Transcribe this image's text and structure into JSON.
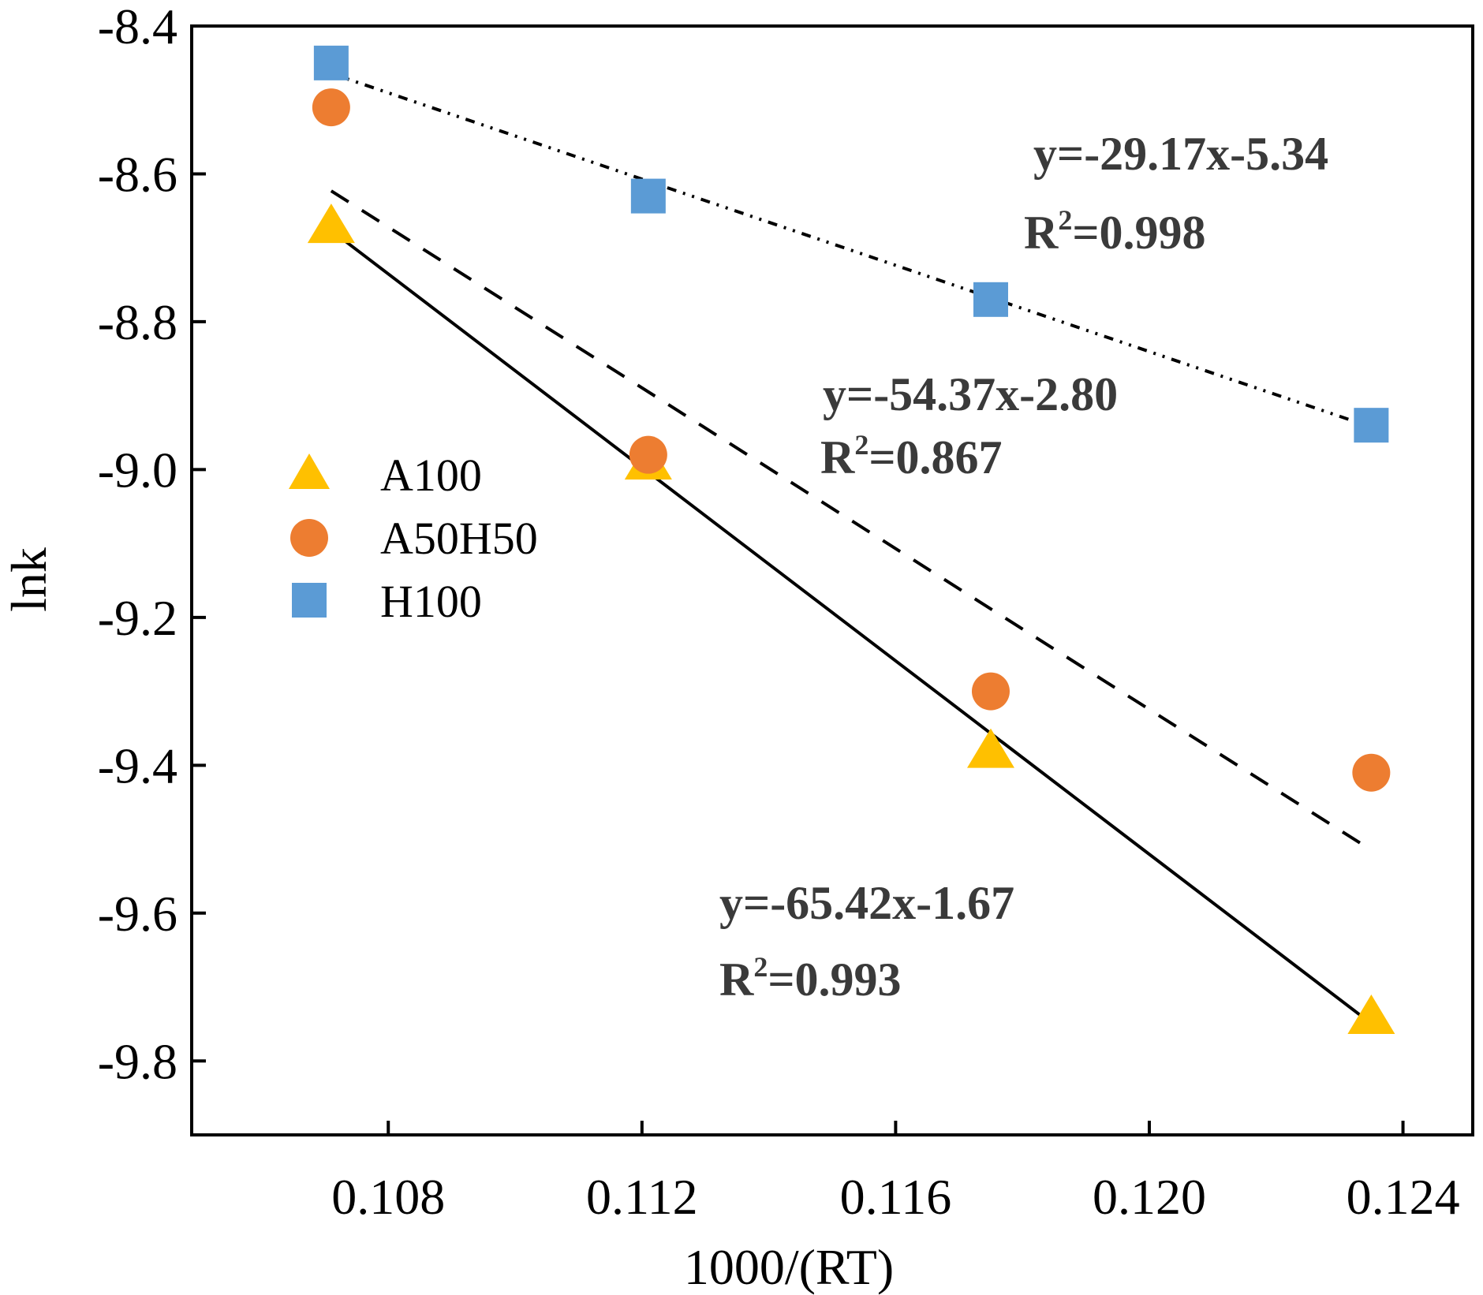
{
  "chart_data": {
    "type": "scatter",
    "title": "",
    "xlabel": "1000/(RT)",
    "ylabel": "lnk",
    "xlim": [
      0.1049,
      0.1251
    ],
    "ylim": [
      -9.9,
      -8.4
    ],
    "x_ticks": [
      0.108,
      0.112,
      0.116,
      0.12,
      0.124
    ],
    "x_tick_labels": [
      "0.108",
      "0.112",
      "0.116",
      "0.120",
      "0.124"
    ],
    "y_ticks": [
      -8.4,
      -8.6,
      -8.8,
      -9.0,
      -9.2,
      -9.4,
      -9.6,
      -9.8
    ],
    "y_tick_labels": [
      "-8.4",
      "-8.6",
      "-8.8",
      "-9.0",
      "-9.2",
      "-9.4",
      "-9.6",
      "-9.8"
    ],
    "grid": false,
    "legend_position": "middle-left",
    "series": [
      {
        "name": "A100",
        "marker": "triangle",
        "color": "#FFC000",
        "line_style": "solid",
        "x": [
          0.1071,
          0.1121,
          0.1175,
          0.1235
        ],
        "y": [
          -8.67,
          -8.99,
          -9.38,
          -9.74
        ],
        "fit_slope": -65.42,
        "fit_intercept": -1.67,
        "fit_x_range": [
          0.1071,
          0.1235
        ],
        "equation": "y=-65.42x-1.67",
        "r2_prefix": "R",
        "r2_exp": "2",
        "r2_value": "=0.993"
      },
      {
        "name": "A50H50",
        "marker": "circle",
        "color": "#ED7D31",
        "line_style": "dashed",
        "x": [
          0.1071,
          0.1121,
          0.1175,
          0.1235
        ],
        "y": [
          -8.51,
          -8.98,
          -9.3,
          -9.41
        ],
        "fit_slope": -54.37,
        "fit_intercept": -2.8,
        "fit_x_range": [
          0.1071,
          0.1235
        ],
        "equation": "y=-54.37x-2.80",
        "r2_prefix": "R",
        "r2_exp": "2",
        "r2_value": "=0.867"
      },
      {
        "name": "H100",
        "marker": "square",
        "color": "#5B9BD5",
        "line_style": "dash-dot-dot",
        "x": [
          0.1071,
          0.1121,
          0.1175,
          0.1235
        ],
        "y": [
          -8.45,
          -8.63,
          -8.77,
          -8.94
        ],
        "fit_slope": -29.17,
        "fit_intercept": -5.34,
        "fit_x_range": [
          0.1071,
          0.1235
        ],
        "equation": "y=-29.17x-5.34",
        "r2_prefix": "R",
        "r2_exp": "2",
        "r2_value": "=0.998"
      }
    ]
  }
}
